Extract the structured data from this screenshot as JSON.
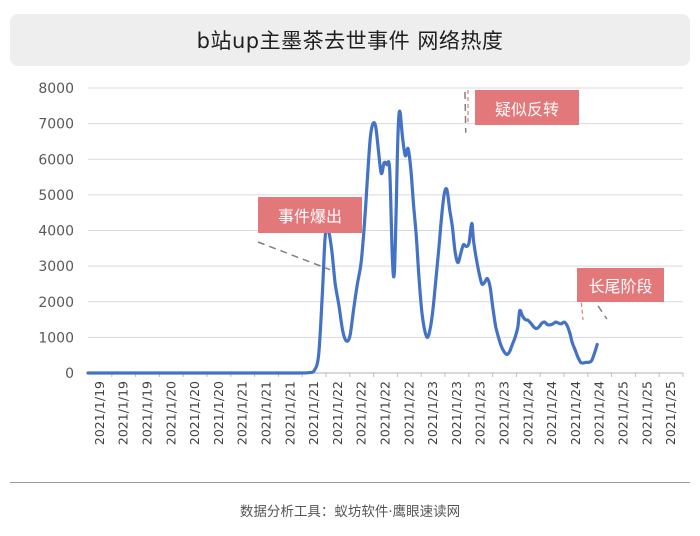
{
  "title": "b站up主墨茶去世事件 网络热度",
  "footer": "数据分析工具：蚁坊软件·鹰眼速读网",
  "colors": {
    "line": "#4472c4",
    "annotation": "#e27879",
    "grid": "#d9d9d9",
    "axis": "#bfbfbf",
    "dashed": "#808080"
  },
  "annotations": [
    {
      "label": "事件爆出",
      "x": 52.5,
      "y": 2900
    },
    {
      "label": "疑似反转",
      "x": 84.5,
      "y": 7250
    },
    {
      "label": "长尾阶段",
      "x": 112.5,
      "y": 1400
    }
  ],
  "chart_data": {
    "type": "line",
    "title": "b站up主墨茶去世事件 网络热度",
    "xlabel": "",
    "ylabel": "",
    "ylim": [
      0,
      8000
    ],
    "yticks": [
      0,
      1000,
      2000,
      3000,
      4000,
      5000,
      6000,
      7000,
      8000
    ],
    "grid": true,
    "x_tick_labels": [
      "2021/1/19",
      "2021/1/19",
      "2021/1/19",
      "2021/1/20",
      "2021/1/20",
      "2021/1/20",
      "2021/1/21",
      "2021/1/21",
      "2021/1/21",
      "2021/1/21",
      "2021/1/22",
      "2021/1/22",
      "2021/1/22",
      "2021/1/22",
      "2021/1/23",
      "2021/1/23",
      "2021/1/23",
      "2021/1/23",
      "2021/1/24",
      "2021/1/24",
      "2021/1/24",
      "2021/1/24",
      "2021/1/25",
      "2021/1/25",
      "2021/1/25"
    ],
    "x_count": 130,
    "series": [
      {
        "points": [
          [
            0,
            0
          ],
          [
            10,
            0
          ],
          [
            20,
            0
          ],
          [
            30,
            0
          ],
          [
            40,
            0
          ],
          [
            46,
            0
          ],
          [
            48,
            10
          ],
          [
            49,
            60
          ],
          [
            50,
            500
          ],
          [
            50.8,
            2200
          ],
          [
            51.4,
            3800
          ],
          [
            52,
            4050
          ],
          [
            52.8,
            3500
          ],
          [
            53.6,
            2500
          ],
          [
            54.4,
            1900
          ],
          [
            55.2,
            1200
          ],
          [
            56,
            900
          ],
          [
            56.8,
            1050
          ],
          [
            57.6,
            1800
          ],
          [
            58.4,
            2500
          ],
          [
            59.2,
            3100
          ],
          [
            60,
            4300
          ],
          [
            60.6,
            5500
          ],
          [
            61.2,
            6600
          ],
          [
            61.8,
            7000
          ],
          [
            62.4,
            6900
          ],
          [
            63,
            6200
          ],
          [
            63.6,
            5600
          ],
          [
            64.2,
            5900
          ],
          [
            64.8,
            5850
          ],
          [
            65.4,
            5700
          ],
          [
            66,
            3200
          ],
          [
            66.4,
            2800
          ],
          [
            66.8,
            4500
          ],
          [
            67.2,
            6700
          ],
          [
            67.6,
            7350
          ],
          [
            68.2,
            6600
          ],
          [
            68.8,
            6100
          ],
          [
            69.4,
            6300
          ],
          [
            70,
            5700
          ],
          [
            70.6,
            4700
          ],
          [
            71.2,
            3800
          ],
          [
            71.8,
            2600
          ],
          [
            72.4,
            1700
          ],
          [
            73,
            1200
          ],
          [
            73.6,
            1000
          ],
          [
            74.2,
            1250
          ],
          [
            74.8,
            1800
          ],
          [
            75.4,
            2600
          ],
          [
            76,
            3400
          ],
          [
            76.6,
            4300
          ],
          [
            77.2,
            5000
          ],
          [
            77.8,
            5150
          ],
          [
            78.4,
            4600
          ],
          [
            79,
            4100
          ],
          [
            79.6,
            3400
          ],
          [
            80.2,
            3100
          ],
          [
            80.8,
            3350
          ],
          [
            81.4,
            3600
          ],
          [
            82,
            3550
          ],
          [
            82.6,
            3650
          ],
          [
            83.2,
            4200
          ],
          [
            83.6,
            3700
          ],
          [
            84.2,
            3200
          ],
          [
            84.8,
            2800
          ],
          [
            85.4,
            2500
          ],
          [
            86,
            2550
          ],
          [
            86.6,
            2650
          ],
          [
            87.2,
            2400
          ],
          [
            87.8,
            1800
          ],
          [
            88.4,
            1300
          ],
          [
            89,
            1000
          ],
          [
            89.6,
            750
          ],
          [
            90.2,
            600
          ],
          [
            90.8,
            520
          ],
          [
            91.4,
            600
          ],
          [
            92,
            800
          ],
          [
            92.6,
            1000
          ],
          [
            93.2,
            1300
          ],
          [
            93.6,
            1750
          ],
          [
            94.2,
            1600
          ],
          [
            94.8,
            1500
          ],
          [
            95.4,
            1480
          ],
          [
            96,
            1400
          ],
          [
            96.6,
            1300
          ],
          [
            97.2,
            1250
          ],
          [
            97.8,
            1300
          ],
          [
            98.4,
            1400
          ],
          [
            99,
            1430
          ],
          [
            99.6,
            1360
          ],
          [
            100.2,
            1350
          ],
          [
            100.8,
            1380
          ],
          [
            101.4,
            1430
          ],
          [
            102,
            1400
          ],
          [
            102.6,
            1380
          ],
          [
            103.2,
            1430
          ],
          [
            103.8,
            1350
          ],
          [
            104.4,
            1150
          ],
          [
            105,
            850
          ],
          [
            105.6,
            650
          ],
          [
            106.2,
            450
          ],
          [
            106.8,
            300
          ],
          [
            107.4,
            280
          ],
          [
            108,
            300
          ],
          [
            108.6,
            300
          ],
          [
            109.2,
            350
          ],
          [
            109.8,
            550
          ],
          [
            110.4,
            800
          ]
        ]
      }
    ]
  }
}
